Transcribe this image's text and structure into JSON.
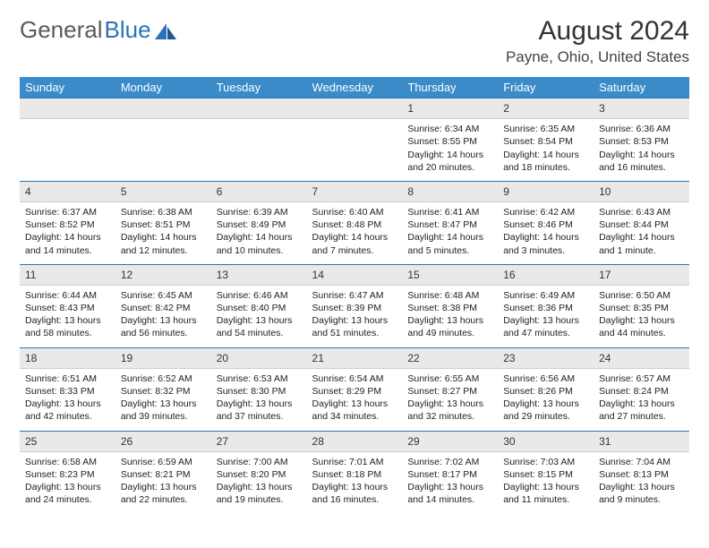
{
  "logo": {
    "text1": "General",
    "text2": "Blue"
  },
  "title": "August 2024",
  "location": "Payne, Ohio, United States",
  "colors": {
    "header_bg": "#3b8bc9",
    "header_text": "#ffffff",
    "daynum_bg": "#e9e9e9",
    "daynum_border_top": "#2d72b8",
    "page_bg": "#ffffff"
  },
  "day_headers": [
    "Sunday",
    "Monday",
    "Tuesday",
    "Wednesday",
    "Thursday",
    "Friday",
    "Saturday"
  ],
  "weeks": [
    [
      null,
      null,
      null,
      null,
      {
        "n": "1",
        "sr": "6:34 AM",
        "ss": "8:55 PM",
        "dl": "14 hours and 20 minutes."
      },
      {
        "n": "2",
        "sr": "6:35 AM",
        "ss": "8:54 PM",
        "dl": "14 hours and 18 minutes."
      },
      {
        "n": "3",
        "sr": "6:36 AM",
        "ss": "8:53 PM",
        "dl": "14 hours and 16 minutes."
      }
    ],
    [
      {
        "n": "4",
        "sr": "6:37 AM",
        "ss": "8:52 PM",
        "dl": "14 hours and 14 minutes."
      },
      {
        "n": "5",
        "sr": "6:38 AM",
        "ss": "8:51 PM",
        "dl": "14 hours and 12 minutes."
      },
      {
        "n": "6",
        "sr": "6:39 AM",
        "ss": "8:49 PM",
        "dl": "14 hours and 10 minutes."
      },
      {
        "n": "7",
        "sr": "6:40 AM",
        "ss": "8:48 PM",
        "dl": "14 hours and 7 minutes."
      },
      {
        "n": "8",
        "sr": "6:41 AM",
        "ss": "8:47 PM",
        "dl": "14 hours and 5 minutes."
      },
      {
        "n": "9",
        "sr": "6:42 AM",
        "ss": "8:46 PM",
        "dl": "14 hours and 3 minutes."
      },
      {
        "n": "10",
        "sr": "6:43 AM",
        "ss": "8:44 PM",
        "dl": "14 hours and 1 minute."
      }
    ],
    [
      {
        "n": "11",
        "sr": "6:44 AM",
        "ss": "8:43 PM",
        "dl": "13 hours and 58 minutes."
      },
      {
        "n": "12",
        "sr": "6:45 AM",
        "ss": "8:42 PM",
        "dl": "13 hours and 56 minutes."
      },
      {
        "n": "13",
        "sr": "6:46 AM",
        "ss": "8:40 PM",
        "dl": "13 hours and 54 minutes."
      },
      {
        "n": "14",
        "sr": "6:47 AM",
        "ss": "8:39 PM",
        "dl": "13 hours and 51 minutes."
      },
      {
        "n": "15",
        "sr": "6:48 AM",
        "ss": "8:38 PM",
        "dl": "13 hours and 49 minutes."
      },
      {
        "n": "16",
        "sr": "6:49 AM",
        "ss": "8:36 PM",
        "dl": "13 hours and 47 minutes."
      },
      {
        "n": "17",
        "sr": "6:50 AM",
        "ss": "8:35 PM",
        "dl": "13 hours and 44 minutes."
      }
    ],
    [
      {
        "n": "18",
        "sr": "6:51 AM",
        "ss": "8:33 PM",
        "dl": "13 hours and 42 minutes."
      },
      {
        "n": "19",
        "sr": "6:52 AM",
        "ss": "8:32 PM",
        "dl": "13 hours and 39 minutes."
      },
      {
        "n": "20",
        "sr": "6:53 AM",
        "ss": "8:30 PM",
        "dl": "13 hours and 37 minutes."
      },
      {
        "n": "21",
        "sr": "6:54 AM",
        "ss": "8:29 PM",
        "dl": "13 hours and 34 minutes."
      },
      {
        "n": "22",
        "sr": "6:55 AM",
        "ss": "8:27 PM",
        "dl": "13 hours and 32 minutes."
      },
      {
        "n": "23",
        "sr": "6:56 AM",
        "ss": "8:26 PM",
        "dl": "13 hours and 29 minutes."
      },
      {
        "n": "24",
        "sr": "6:57 AM",
        "ss": "8:24 PM",
        "dl": "13 hours and 27 minutes."
      }
    ],
    [
      {
        "n": "25",
        "sr": "6:58 AM",
        "ss": "8:23 PM",
        "dl": "13 hours and 24 minutes."
      },
      {
        "n": "26",
        "sr": "6:59 AM",
        "ss": "8:21 PM",
        "dl": "13 hours and 22 minutes."
      },
      {
        "n": "27",
        "sr": "7:00 AM",
        "ss": "8:20 PM",
        "dl": "13 hours and 19 minutes."
      },
      {
        "n": "28",
        "sr": "7:01 AM",
        "ss": "8:18 PM",
        "dl": "13 hours and 16 minutes."
      },
      {
        "n": "29",
        "sr": "7:02 AM",
        "ss": "8:17 PM",
        "dl": "13 hours and 14 minutes."
      },
      {
        "n": "30",
        "sr": "7:03 AM",
        "ss": "8:15 PM",
        "dl": "13 hours and 11 minutes."
      },
      {
        "n": "31",
        "sr": "7:04 AM",
        "ss": "8:13 PM",
        "dl": "13 hours and 9 minutes."
      }
    ]
  ],
  "labels": {
    "sunrise": "Sunrise:",
    "sunset": "Sunset:",
    "daylight": "Daylight:"
  }
}
